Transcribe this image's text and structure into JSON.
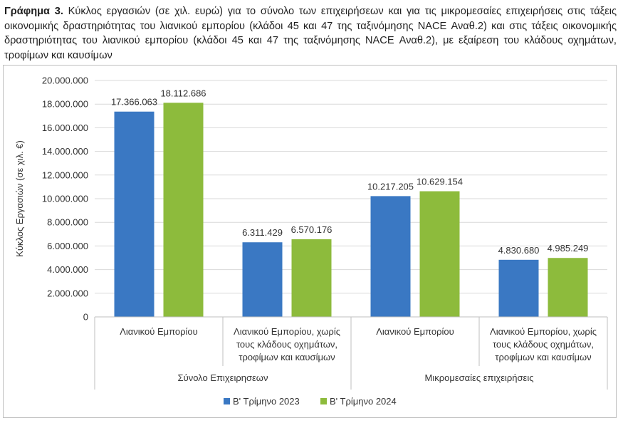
{
  "caption": {
    "bold": "Γράφημα 3.",
    "text": "Κύκλος εργασιών (σε χιλ. ευρώ) για το σύνολο των επιχειρήσεων και για τις μικρομεσαίες επιχειρήσεις στις τάξεις οικονομικής δραστηριότητας του λιανικού εμπορίου (κλάδοι 45 και 47 της ταξινόμησης NACE Αναθ.2) και στις τάξεις οικονομικής δραστηριότητας του λιανικού εμπορίου (κλάδοι 45 και 47 της ταξινόμησης NACE Αναθ.2), με εξαίρεση του κλάδους οχημάτων, τροφίμων και καυσίμων"
  },
  "chart_data": {
    "type": "bar",
    "ylabel": "Κύκλος Εργασιών (σε χιλ. €)",
    "ylim": [
      0,
      20000000
    ],
    "yticks": [
      "0",
      "2.000.000",
      "4.000.000",
      "6.000.000",
      "8.000.000",
      "10.000.000",
      "12.000.000",
      "14.000.000",
      "16.000.000",
      "18.000.000",
      "20.000.000"
    ],
    "grid": true,
    "legend_position": "bottom",
    "categories": [
      [
        "Λιανικού Εμπορίου"
      ],
      [
        "Λιανικού Εμπορίου, χωρίς",
        "τους κλάδους οχημάτων,",
        "τροφίμων και καυσίμων"
      ],
      [
        "Λιανικού Εμπορίου"
      ],
      [
        "Λιανικού Εμπορίου, χωρίς",
        "τους κλάδους οχημάτων,",
        "τροφίμων και καυσίμων"
      ]
    ],
    "groups": [
      "Σύνολο Επιχειρησεων",
      "Μικρομεσαίες επιχειρήσεις"
    ],
    "series": [
      {
        "name": "Β' Τρίμηνο 2023",
        "color": "#3a78c3",
        "values": [
          17366063,
          6311429,
          10217205,
          4830680
        ],
        "labels": [
          "17.366.063",
          "6.311.429",
          "10.217.205",
          "4.830.680"
        ]
      },
      {
        "name": "Β' Τρίμηνο 2024",
        "color": "#8dbb3c",
        "values": [
          18112686,
          6570176,
          10629154,
          4985249
        ],
        "labels": [
          "18.112.686",
          "6.570.176",
          "10.629.154",
          "4.985.249"
        ]
      }
    ]
  }
}
